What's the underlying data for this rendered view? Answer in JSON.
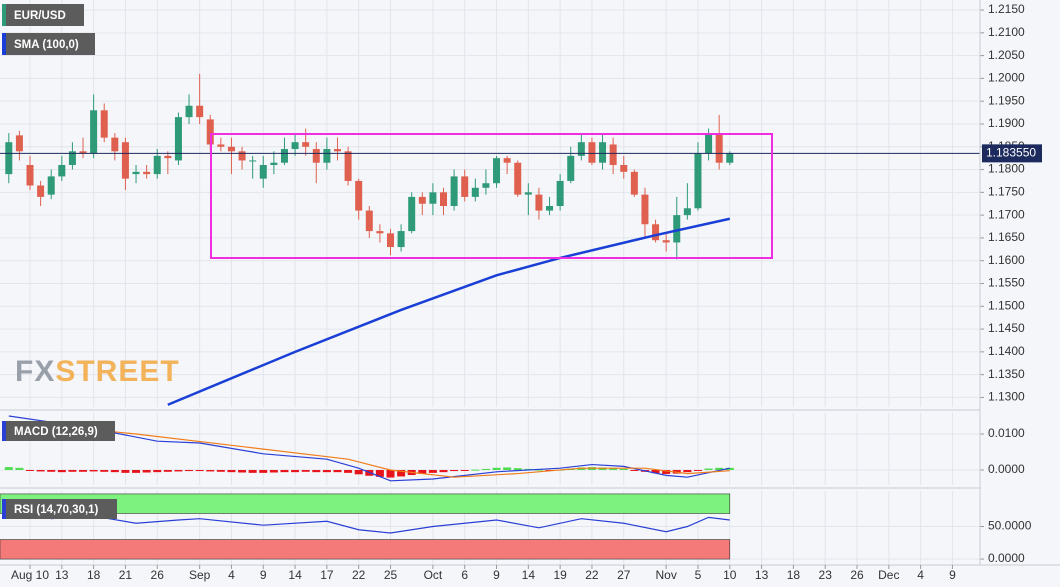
{
  "chart_data": [
    {
      "type": "candlestick",
      "title": "EUR/USD",
      "x": [
        -2,
        -1,
        0,
        1,
        2,
        3,
        4,
        5,
        6,
        7,
        8,
        9,
        10,
        11,
        12,
        13,
        14,
        15,
        16,
        17,
        18,
        19,
        20,
        21,
        22,
        23,
        24,
        25,
        26,
        27,
        28,
        29,
        30,
        31,
        32,
        33,
        34,
        35,
        36,
        37,
        38,
        39,
        40,
        41,
        42,
        43,
        44,
        45,
        46,
        47,
        48,
        49,
        50,
        51,
        52,
        53,
        54,
        55,
        56,
        57,
        58,
        59,
        60,
        61,
        62,
        63,
        64,
        65,
        66
      ],
      "open": [
        1.179,
        1.1875,
        1.181,
        1.1765,
        1.1745,
        1.1785,
        1.181,
        1.184,
        1.1835,
        1.193,
        1.187,
        1.186,
        1.179,
        1.1795,
        1.179,
        1.183,
        1.182,
        1.1915,
        1.194,
        1.191,
        1.1855,
        1.185,
        1.184,
        1.182,
        1.178,
        1.181,
        1.1815,
        1.1845,
        1.186,
        1.1845,
        1.1815,
        1.1845,
        1.184,
        1.1775,
        1.171,
        1.1665,
        1.166,
        1.163,
        1.1665,
        1.174,
        1.1725,
        1.175,
        1.172,
        1.1785,
        1.174,
        1.176,
        1.177,
        1.1825,
        1.1815,
        1.1745,
        1.1745,
        1.171,
        1.172,
        1.1775,
        1.183,
        1.186,
        1.1815,
        1.1855,
        1.181,
        1.1795,
        1.1745,
        1.168,
        1.1645,
        1.164,
        1.17,
        1.1715,
        1.1835,
        1.188,
        1.1815
      ],
      "high": [
        1.188,
        1.1885,
        1.183,
        1.1775,
        1.18,
        1.183,
        1.186,
        1.187,
        1.1965,
        1.1945,
        1.188,
        1.187,
        1.181,
        1.181,
        1.1845,
        1.184,
        1.1925,
        1.1965,
        1.201,
        1.192,
        1.187,
        1.187,
        1.185,
        1.183,
        1.183,
        1.184,
        1.187,
        1.188,
        1.189,
        1.186,
        1.187,
        1.187,
        1.185,
        1.178,
        1.172,
        1.168,
        1.167,
        1.168,
        1.175,
        1.175,
        1.177,
        1.176,
        1.18,
        1.18,
        1.178,
        1.18,
        1.183,
        1.183,
        1.182,
        1.177,
        1.176,
        1.174,
        1.179,
        1.185,
        1.188,
        1.187,
        1.188,
        1.187,
        1.183,
        1.18,
        1.176,
        1.169,
        1.166,
        1.174,
        1.177,
        1.186,
        1.189,
        1.192,
        1.184
      ],
      "low": [
        1.177,
        1.182,
        1.1755,
        1.172,
        1.1735,
        1.1775,
        1.18,
        1.1825,
        1.1825,
        1.186,
        1.182,
        1.1755,
        1.177,
        1.178,
        1.178,
        1.179,
        1.181,
        1.19,
        1.19,
        1.184,
        1.184,
        1.179,
        1.18,
        1.178,
        1.176,
        1.179,
        1.181,
        1.183,
        1.183,
        1.177,
        1.18,
        1.182,
        1.1765,
        1.169,
        1.165,
        1.164,
        1.1612,
        1.162,
        1.166,
        1.17,
        1.17,
        1.17,
        1.171,
        1.173,
        1.173,
        1.1745,
        1.176,
        1.179,
        1.174,
        1.17,
        1.169,
        1.17,
        1.171,
        1.177,
        1.182,
        1.181,
        1.18,
        1.179,
        1.178,
        1.174,
        1.165,
        1.164,
        1.162,
        1.1603,
        1.169,
        1.171,
        1.182,
        1.18,
        1.181
      ],
      "close": [
        1.186,
        1.184,
        1.1765,
        1.174,
        1.1785,
        1.181,
        1.184,
        1.1835,
        1.193,
        1.187,
        1.184,
        1.178,
        1.1795,
        1.179,
        1.183,
        1.1825,
        1.1915,
        1.194,
        1.1915,
        1.1855,
        1.185,
        1.184,
        1.182,
        1.182,
        1.181,
        1.1815,
        1.1845,
        1.186,
        1.185,
        1.1815,
        1.1845,
        1.184,
        1.1775,
        1.171,
        1.1665,
        1.166,
        1.163,
        1.1665,
        1.174,
        1.1725,
        1.175,
        1.172,
        1.1785,
        1.174,
        1.176,
        1.177,
        1.1825,
        1.1815,
        1.1745,
        1.175,
        1.171,
        1.172,
        1.1775,
        1.183,
        1.186,
        1.1815,
        1.186,
        1.181,
        1.1795,
        1.1745,
        1.168,
        1.1645,
        1.164,
        1.17,
        1.1715,
        1.1835,
        1.188,
        1.1815,
        1.1835
      ],
      "up_color": "#2e9a78",
      "down_color": "#e0604f",
      "series": [
        {
          "name": "SMA (100,0)",
          "color": "#1a3fd6",
          "x": [
            13,
            25,
            35,
            44,
            50,
            59,
            66
          ],
          "values": [
            1.1284,
            1.14,
            1.1492,
            1.1568,
            1.1606,
            1.1656,
            1.1692
          ]
        }
      ],
      "last_price": {
        "value": 1.18355,
        "label": "1.183550"
      },
      "xlim": [
        -2.83,
        89.6
      ],
      "ylim": [
        1.1279,
        1.2172
      ],
      "yticks": [
        {
          "value": 1.13,
          "label": "1.1300"
        },
        {
          "value": 1.135,
          "label": "1.1350"
        },
        {
          "value": 1.14,
          "label": "1.1400"
        },
        {
          "value": 1.145,
          "label": "1.1450"
        },
        {
          "value": 1.15,
          "label": "1.1500"
        },
        {
          "value": 1.155,
          "label": "1.1550"
        },
        {
          "value": 1.16,
          "label": "1.1600"
        },
        {
          "value": 1.165,
          "label": "1.1650"
        },
        {
          "value": 1.17,
          "label": "1.1700"
        },
        {
          "value": 1.175,
          "label": "1.1750"
        },
        {
          "value": 1.18,
          "label": "1.1800"
        },
        {
          "value": 1.185,
          "label": "1.1850"
        },
        {
          "value": 1.19,
          "label": "1.1900"
        },
        {
          "value": 1.195,
          "label": "1.1950"
        },
        {
          "value": 1.2,
          "label": "1.2000"
        },
        {
          "value": 1.205,
          "label": "1.2050"
        },
        {
          "value": 1.21,
          "label": "1.2100"
        },
        {
          "value": 1.215,
          "label": "1.2150"
        }
      ],
      "grid": true
    },
    {
      "type": "macd",
      "title": "MACD (12,26,9)",
      "histogram": [
        0.0008,
        0.0006,
        -0.0002,
        -0.0004,
        -0.0005,
        -0.0006,
        -0.0005,
        -0.0005,
        -0.0004,
        -0.0005,
        -0.0006,
        -0.0008,
        -0.0008,
        -0.0007,
        -0.0006,
        -0.0005,
        -0.0004,
        -0.0003,
        -0.0003,
        -0.0004,
        -0.0005,
        -0.0006,
        -0.0007,
        -0.0008,
        -0.0008,
        -0.0007,
        -0.0006,
        -0.0006,
        -0.0005,
        -0.0006,
        -0.0006,
        -0.0006,
        -0.0008,
        -0.0012,
        -0.0016,
        -0.0019,
        -0.0021,
        -0.0018,
        -0.0014,
        -0.0011,
        -0.0008,
        -0.0006,
        -0.0003,
        -0.0002,
        0.0001,
        0.0003,
        0.0006,
        0.0007,
        0.0005,
        0.0003,
        0.0001,
        -0.0001,
        0.0001,
        0.0004,
        0.0007,
        0.0008,
        0.0007,
        0.0005,
        0.0003,
        -0.0001,
        -0.0005,
        -0.0009,
        -0.0011,
        -0.001,
        -0.0006,
        -0.0001,
        0.0004,
        0.0006,
        0.0006
      ],
      "up_color": "#4fdc4f",
      "down_color": "#e8141b",
      "series": [
        {
          "color": "#2a3fd6",
          "x": [
            -2,
            5,
            12,
            16,
            22,
            28,
            31,
            34,
            38,
            44,
            50,
            53,
            56,
            60,
            62,
            66
          ],
          "values": [
            0.015,
            0.012,
            0.008,
            0.0075,
            0.0045,
            0.003,
            0.0005,
            -0.003,
            -0.0025,
            -0.0005,
            0.0005,
            0.0015,
            0.001,
            -0.0015,
            -0.002,
            0.0005
          ]
        },
        {
          "color": "#f07d1a",
          "x": [
            -2,
            10,
            20,
            30,
            34,
            40,
            46,
            52,
            58,
            62,
            66
          ],
          "values": [
            0.0135,
            0.01,
            0.0065,
            0.003,
            0.0,
            -0.002,
            -0.001,
            0.0005,
            0.0005,
            -0.001,
            -0.0002
          ]
        }
      ],
      "xlim": [
        -2.83,
        89.6
      ],
      "ylim": [
        -0.00417,
        0.01583
      ],
      "yticks": [
        {
          "value": 0,
          "label": "0.0000"
        },
        {
          "value": 0.01,
          "label": "0.0100"
        }
      ],
      "grid": true
    },
    {
      "type": "line",
      "title": "RSI (14,70,30,1)",
      "zones": [
        {
          "from": 70,
          "to": 100,
          "color": "#7ef27e"
        },
        {
          "from": 0,
          "to": 30,
          "color": "#f47a7a"
        }
      ],
      "series": [
        {
          "color": "#2a3fd6",
          "x": [
            -2,
            2,
            6,
            10,
            14,
            16,
            22,
            28,
            31,
            34,
            38,
            44,
            48,
            52,
            56,
            60,
            62,
            64,
            66
          ],
          "values": [
            80,
            62,
            66,
            55,
            60,
            62,
            52,
            58,
            45,
            40,
            50,
            60,
            48,
            62,
            55,
            42,
            50,
            64,
            60
          ]
        }
      ],
      "xlim": [
        -2.83,
        89.6
      ],
      "ylim": [
        -9.1,
        104.5
      ],
      "yticks": [
        {
          "value": 0,
          "label": "0.0000"
        },
        {
          "value": 50,
          "label": "50.0000"
        }
      ],
      "grid": true,
      "xticks": [
        {
          "value": 0,
          "label": "Aug 10"
        },
        {
          "value": 3,
          "label": "13"
        },
        {
          "value": 6,
          "label": "18"
        },
        {
          "value": 9,
          "label": "21"
        },
        {
          "value": 12,
          "label": "26"
        },
        {
          "value": 16,
          "label": "Sep"
        },
        {
          "value": 19,
          "label": "4"
        },
        {
          "value": 22,
          "label": "9"
        },
        {
          "value": 25,
          "label": "14"
        },
        {
          "value": 28,
          "label": "17"
        },
        {
          "value": 31,
          "label": "22"
        },
        {
          "value": 34,
          "label": "25"
        },
        {
          "value": 38,
          "label": "Oct"
        },
        {
          "value": 41,
          "label": "6"
        },
        {
          "value": 44,
          "label": "9"
        },
        {
          "value": 47,
          "label": "14"
        },
        {
          "value": 50,
          "label": "19"
        },
        {
          "value": 53,
          "label": "22"
        },
        {
          "value": 56,
          "label": "27"
        },
        {
          "value": 60,
          "label": "Nov"
        },
        {
          "value": 63,
          "label": "5"
        },
        {
          "value": 66,
          "label": "10"
        },
        {
          "value": 69,
          "label": "13"
        },
        {
          "value": 72,
          "label": "18"
        },
        {
          "value": 75,
          "label": "23"
        },
        {
          "value": 78,
          "label": "26"
        },
        {
          "value": 81,
          "label": "Dec"
        },
        {
          "value": 84,
          "label": "4"
        },
        {
          "value": 87,
          "label": "9"
        }
      ]
    }
  ],
  "watermark": {
    "fx": "FX",
    "street": "STREET"
  }
}
